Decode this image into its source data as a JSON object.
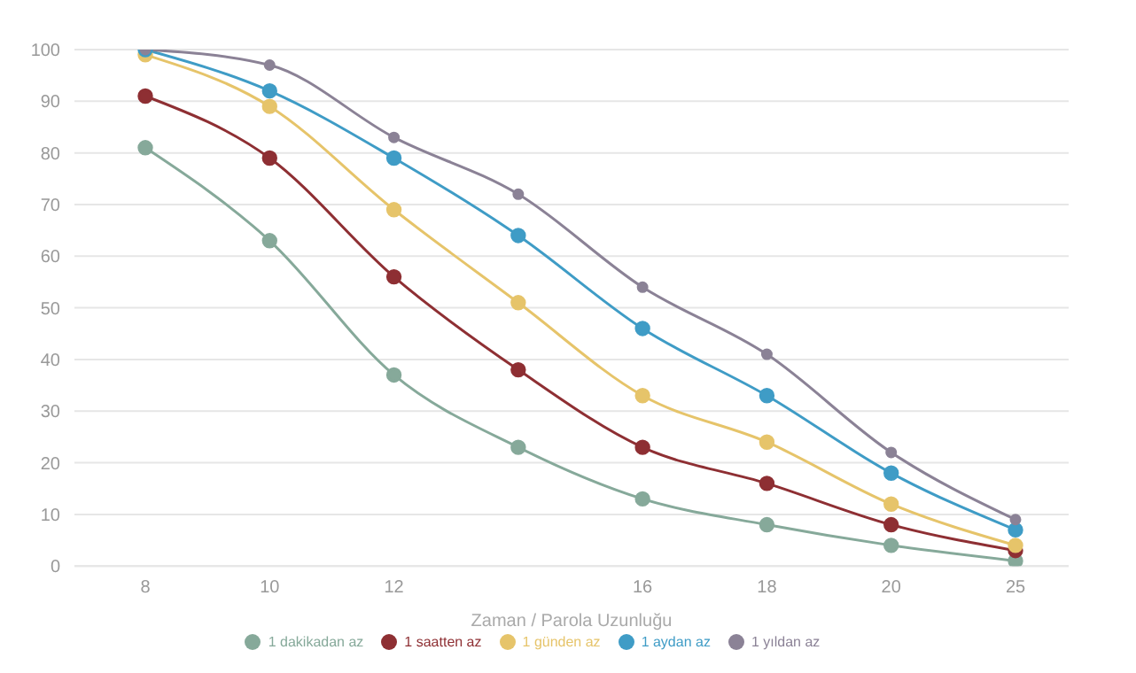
{
  "chart_data": {
    "type": "line",
    "xlabel": "Zaman / Parola Uzunluğu",
    "categories": [
      "8",
      "10",
      "12",
      null,
      "16",
      "18",
      "20",
      "25"
    ],
    "series": [
      {
        "name": "1 dakikadan az",
        "color": "#86a99a",
        "values": [
          81,
          63,
          37,
          23,
          13,
          8,
          4,
          1
        ]
      },
      {
        "name": "1 saatten az",
        "color": "#8e2f33",
        "values": [
          91,
          79,
          56,
          38,
          23,
          16,
          8,
          3
        ]
      },
      {
        "name": "1 günden az",
        "color": "#e6c46a",
        "values": [
          99,
          89,
          69,
          51,
          33,
          24,
          12,
          4
        ]
      },
      {
        "name": "1 aydan az",
        "color": "#3f9cc6",
        "values": [
          100,
          92,
          79,
          64,
          46,
          33,
          18,
          7
        ]
      },
      {
        "name": "1 yıldan az",
        "color": "#8b8296",
        "values": [
          100,
          97,
          83,
          72,
          54,
          41,
          22,
          9
        ]
      }
    ],
    "ylim": [
      0,
      100
    ],
    "yticks": [
      0,
      10,
      20,
      30,
      40,
      50,
      60,
      70,
      80,
      90,
      100
    ],
    "grid": "y",
    "legend": "bottom",
    "marker": "circle",
    "line_style": "solid"
  }
}
